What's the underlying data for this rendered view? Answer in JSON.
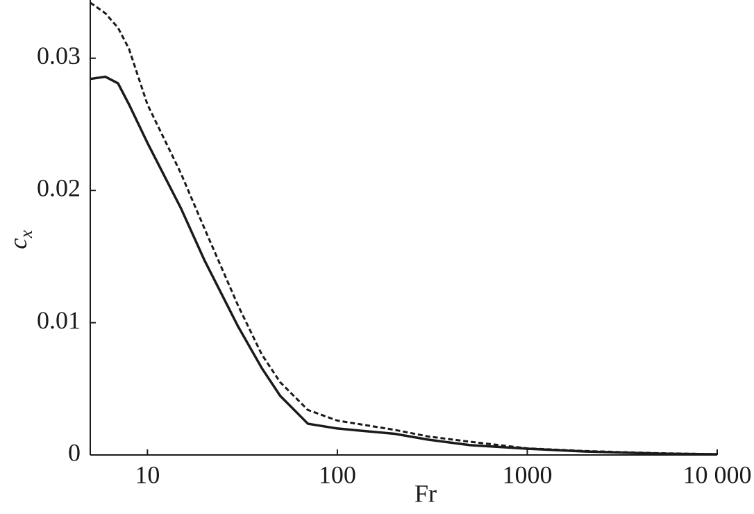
{
  "chart_data": {
    "type": "line",
    "xlabel": "Fr",
    "ylabel": {
      "text": "c",
      "subscript": "x"
    },
    "x": [
      5,
      6,
      7,
      8,
      10,
      15,
      20,
      30,
      40,
      50,
      70,
      100,
      200,
      300,
      500,
      1000,
      2000,
      5000,
      10000
    ],
    "series": [
      {
        "color": "#1a1a1a",
        "dashed": false,
        "values": [
          0.02843,
          0.0286,
          0.0281,
          0.0265,
          0.0236,
          0.01866,
          0.0147,
          0.00972,
          0.00657,
          0.00447,
          0.00236,
          0.002,
          0.0016,
          0.00116,
          0.00074,
          0.00047,
          0.00026,
          0.0001,
          5e-05
        ]
      },
      {
        "color": "#1a1a1a",
        "dashed": true,
        "values": [
          0.0342,
          0.0334,
          0.0323,
          0.0307,
          0.0265,
          0.0213,
          0.0171,
          0.0113,
          0.0076,
          0.0055,
          0.0034,
          0.0026,
          0.0019,
          0.0014,
          0.001,
          0.0005,
          0.0003,
          0.00013,
          6e-05
        ]
      }
    ],
    "xscale": "log",
    "xlim": [
      5,
      10000
    ],
    "xticks": [
      10,
      100,
      1000,
      {
        "value": 10000,
        "label": "10 000"
      }
    ],
    "ylim": [
      0,
      0.0344
    ],
    "yticks": [
      0,
      0.01,
      0.02,
      0.03
    ],
    "grid": false
  }
}
